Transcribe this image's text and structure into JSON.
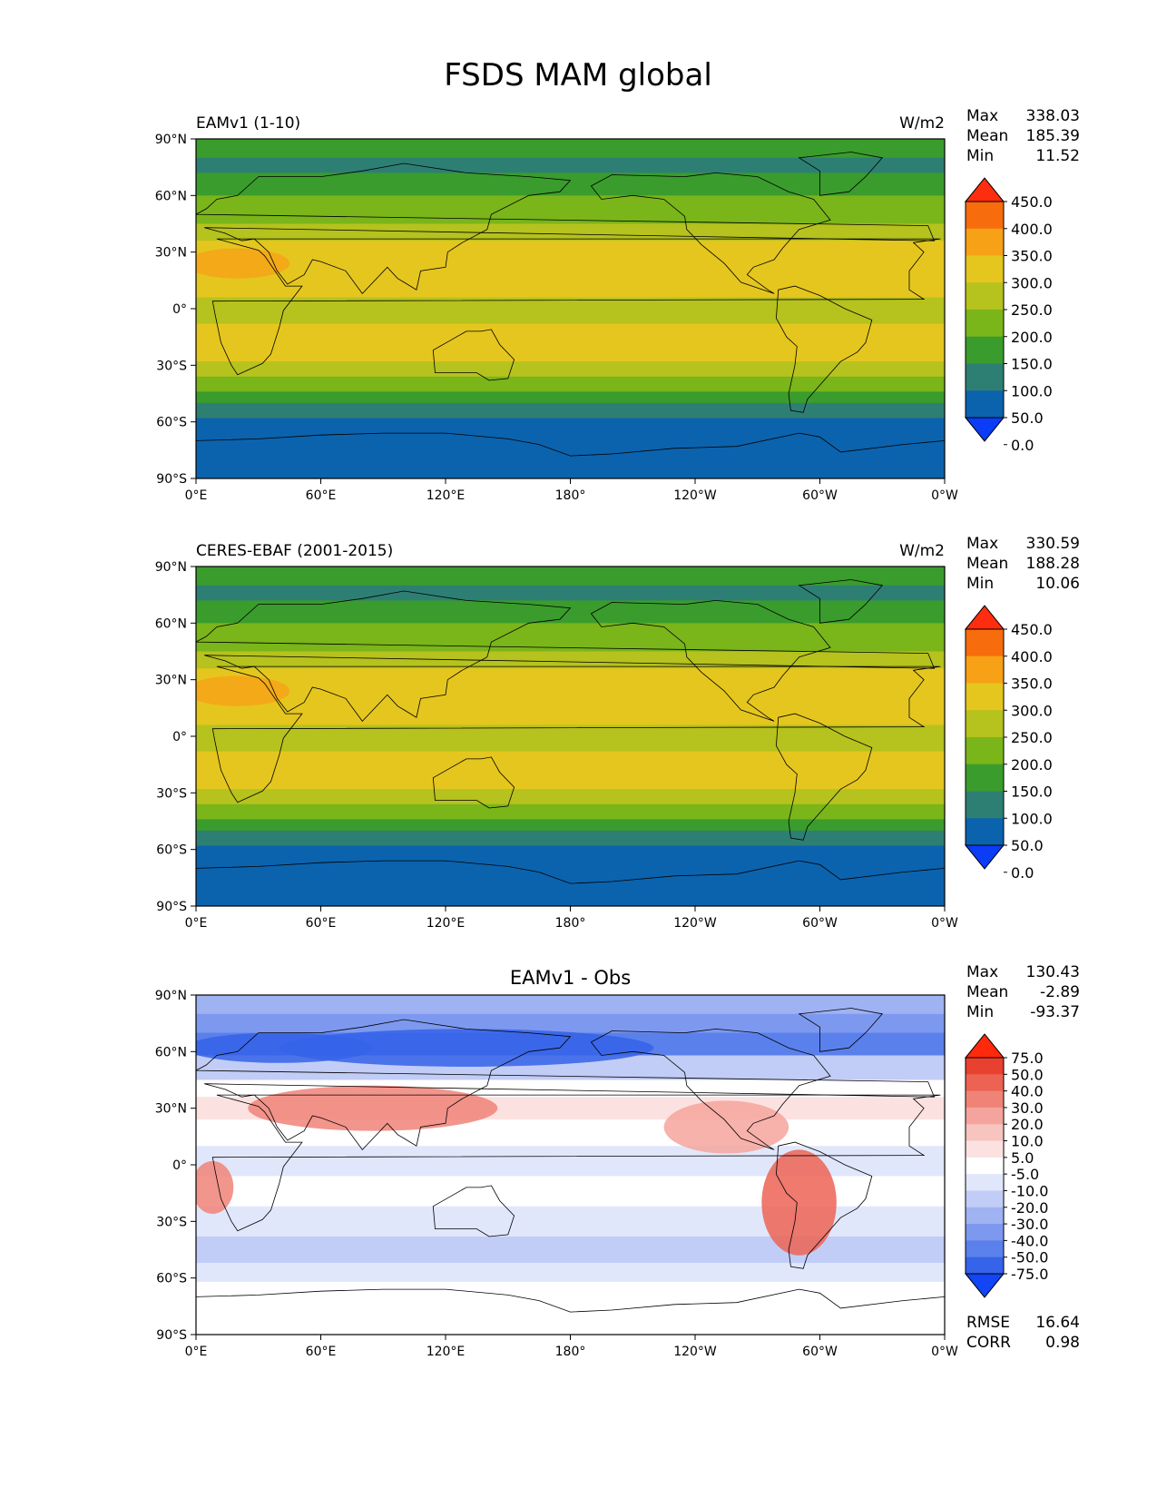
{
  "figure": {
    "title": "FSDS MAM global"
  },
  "panels": [
    {
      "id": "model",
      "left_title": "EAMv1 (1-10)",
      "center_title": "",
      "units": "W/m2",
      "stats": [
        {
          "label": "Max",
          "value": "338.03"
        },
        {
          "label": "Mean",
          "value": "185.39"
        },
        {
          "label": "Min",
          "value": "11.52"
        }
      ],
      "colorbar": {
        "ticks": [
          "450.0",
          "400.0",
          "350.0",
          "300.0",
          "250.0",
          "200.0",
          "150.0",
          "100.0",
          "50.0",
          "0.0"
        ],
        "colors": [
          "#0b3cf6",
          "#0b63ad",
          "#2e7f73",
          "#3a9c2c",
          "#7ab51a",
          "#b6c21d",
          "#e5c61e",
          "#f7a116",
          "#f76c0c",
          "#ff2d0f"
        ]
      },
      "extra_stats": []
    },
    {
      "id": "obs",
      "left_title": "CERES-EBAF (2001-2015)",
      "center_title": "",
      "units": "W/m2",
      "stats": [
        {
          "label": "Max",
          "value": "330.59"
        },
        {
          "label": "Mean",
          "value": "188.28"
        },
        {
          "label": "Min",
          "value": "10.06"
        }
      ],
      "colorbar": {
        "ticks": [
          "450.0",
          "400.0",
          "350.0",
          "300.0",
          "250.0",
          "200.0",
          "150.0",
          "100.0",
          "50.0",
          "0.0"
        ],
        "colors": [
          "#0b3cf6",
          "#0b63ad",
          "#2e7f73",
          "#3a9c2c",
          "#7ab51a",
          "#b6c21d",
          "#e5c61e",
          "#f7a116",
          "#f76c0c",
          "#ff2d0f"
        ]
      },
      "extra_stats": []
    },
    {
      "id": "diff",
      "left_title": "",
      "center_title": "EAMv1 - Obs",
      "units": "",
      "stats": [
        {
          "label": "Max",
          "value": "130.43"
        },
        {
          "label": "Mean",
          "value": "-2.89"
        },
        {
          "label": "Min",
          "value": "-93.37"
        }
      ],
      "colorbar": {
        "ticks": [
          "75.0",
          "50.0",
          "40.0",
          "30.0",
          "20.0",
          "10.0",
          "5.0",
          "-5.0",
          "-10.0",
          "-20.0",
          "-30.0",
          "-40.0",
          "-50.0",
          "-75.0"
        ],
        "colors": [
          "#1245f5",
          "#3563e9",
          "#5a80ec",
          "#7d99ef",
          "#9fb2f2",
          "#c1cdf6",
          "#e1e7fb",
          "#ffffff",
          "#fbe2e0",
          "#f8c4bf",
          "#f4a49c",
          "#f08378",
          "#ec6353",
          "#e8412f",
          "#ff2a0c"
        ]
      },
      "extra_stats": [
        {
          "label": "RMSE",
          "value": "16.64"
        },
        {
          "label": "CORR",
          "value": "0.98"
        }
      ]
    }
  ],
  "axes": {
    "y_ticks": [
      "90°N",
      "60°N",
      "30°N",
      "0°",
      "30°S",
      "60°S",
      "90°S"
    ],
    "x_ticks": [
      "0°E",
      "60°E",
      "120°E",
      "180°",
      "120°W",
      "60°W",
      "0°W"
    ]
  },
  "chart_data": [
    {
      "type": "heatmap",
      "title": "EAMv1 (1-10)",
      "variable": "FSDS",
      "season": "MAM",
      "units": "W/m2",
      "x_range": [
        0,
        360
      ],
      "y_range": [
        -90,
        90
      ],
      "levels": [
        0,
        50,
        100,
        150,
        200,
        250,
        300,
        350,
        400,
        450
      ],
      "stats": {
        "max": 338.03,
        "mean": 185.39,
        "min": 11.52
      },
      "zonal_profile": {
        "lat": [
          90,
          75,
          60,
          45,
          30,
          15,
          0,
          -15,
          -30,
          -45,
          -60,
          -75,
          -90
        ],
        "value": [
          120,
          140,
          165,
          210,
          255,
          265,
          235,
          255,
          225,
          160,
          85,
          30,
          15
        ]
      }
    },
    {
      "type": "heatmap",
      "title": "CERES-EBAF (2001-2015)",
      "variable": "FSDS",
      "season": "MAM",
      "units": "W/m2",
      "x_range": [
        0,
        360
      ],
      "y_range": [
        -90,
        90
      ],
      "levels": [
        0,
        50,
        100,
        150,
        200,
        250,
        300,
        350,
        400,
        450
      ],
      "stats": {
        "max": 330.59,
        "mean": 188.28,
        "min": 10.06
      },
      "zonal_profile": {
        "lat": [
          90,
          75,
          60,
          45,
          30,
          15,
          0,
          -15,
          -30,
          -45,
          -60,
          -75,
          -90
        ],
        "value": [
          125,
          145,
          170,
          205,
          250,
          260,
          240,
          255,
          225,
          165,
          85,
          30,
          15
        ]
      }
    },
    {
      "type": "heatmap",
      "title": "EAMv1 - Obs",
      "variable": "FSDS",
      "season": "MAM",
      "units": "W/m2",
      "x_range": [
        0,
        360
      ],
      "y_range": [
        -90,
        90
      ],
      "levels": [
        -75,
        -50,
        -40,
        -30,
        -20,
        -10,
        -5,
        5,
        10,
        20,
        30,
        40,
        50,
        75
      ],
      "stats": {
        "max": 130.43,
        "mean": -2.89,
        "min": -93.37,
        "rmse": 16.64,
        "corr": 0.98
      },
      "zonal_profile": {
        "lat": [
          90,
          75,
          60,
          45,
          30,
          15,
          0,
          -15,
          -30,
          -45,
          -60,
          -75,
          -90
        ],
        "value": [
          -20,
          -25,
          -30,
          5,
          10,
          5,
          -5,
          5,
          5,
          -10,
          0,
          0,
          0
        ]
      }
    }
  ]
}
